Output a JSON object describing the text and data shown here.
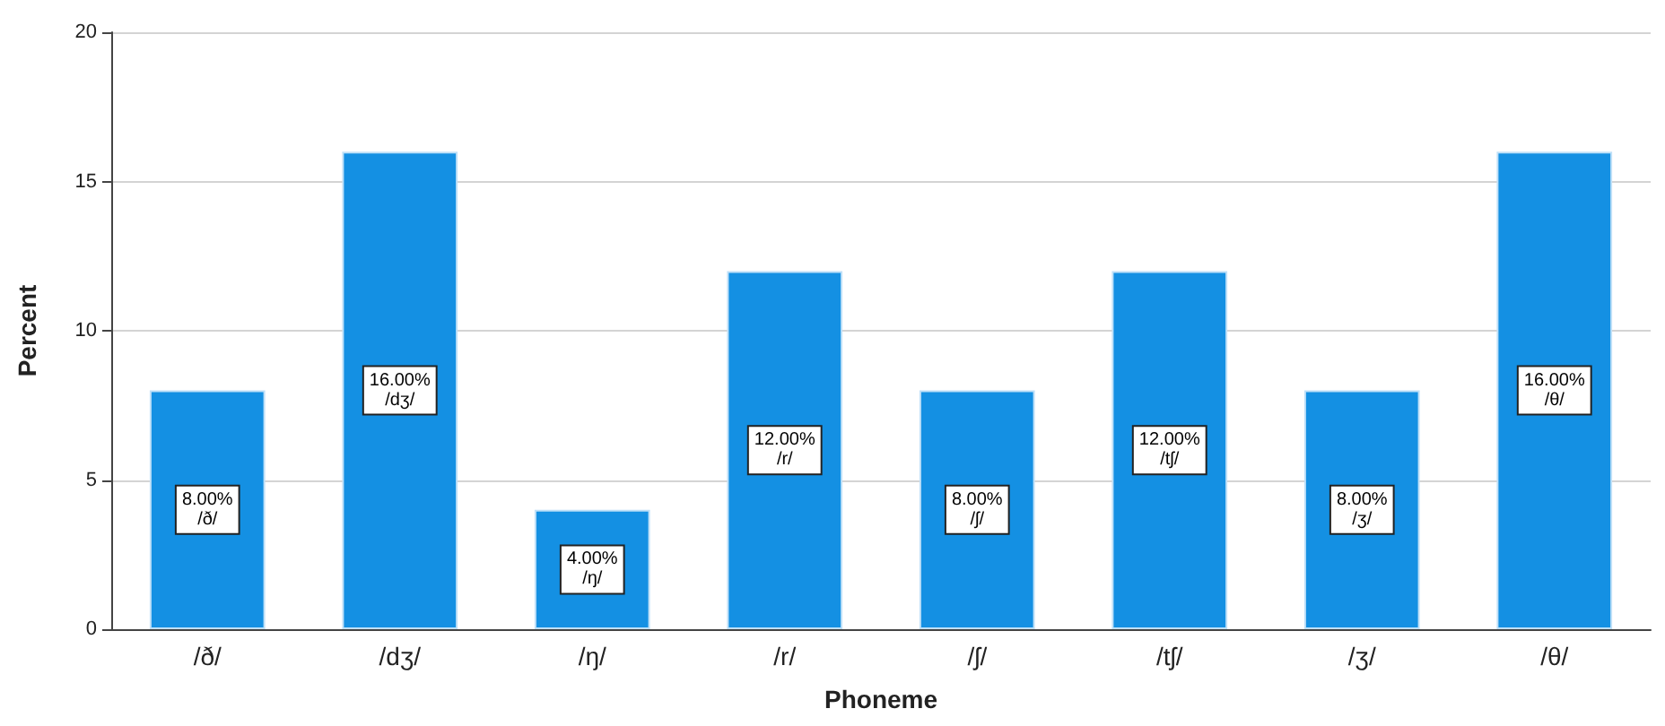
{
  "chart_data": {
    "type": "bar",
    "xlabel": "Phoneme",
    "ylabel": "Percent",
    "categories": [
      "/ð/",
      "/dʒ/",
      "/ŋ/",
      "/r/",
      "/ʃ/",
      "/tʃ/",
      "/ʒ/",
      "/θ/"
    ],
    "values": [
      8,
      16,
      4,
      12,
      8,
      12,
      8,
      16
    ],
    "value_labels": [
      "8.00%",
      "16.00%",
      "4.00%",
      "12.00%",
      "8.00%",
      "12.00%",
      "8.00%",
      "16.00%"
    ],
    "color": "#1490e3",
    "ylim": [
      0,
      20
    ],
    "yticks": [
      0,
      5,
      10,
      15,
      20
    ],
    "grid": "y"
  }
}
